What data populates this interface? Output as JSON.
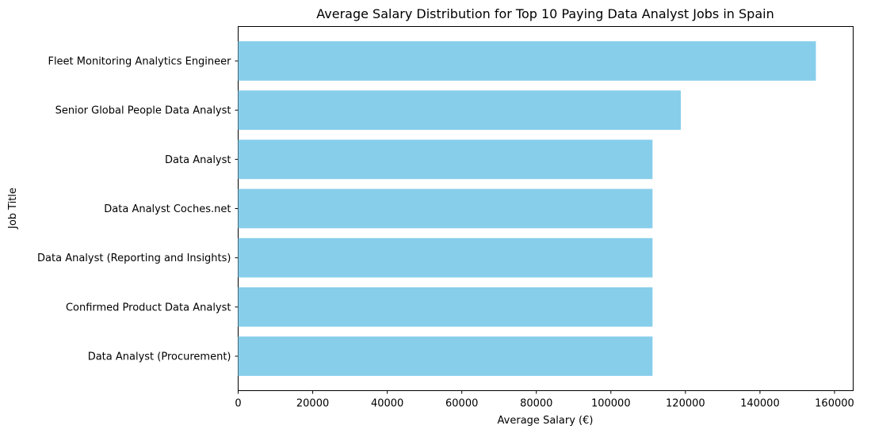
{
  "chart_data": {
    "type": "bar",
    "orientation": "horizontal",
    "title": "Average Salary Distribution for Top 10 Paying Data Analyst Jobs in Spain",
    "xlabel": "Average Salary (€)",
    "ylabel": "Job Title",
    "xlim": [
      0,
      165000
    ],
    "xticks": [
      0,
      20000,
      40000,
      60000,
      80000,
      100000,
      120000,
      140000,
      160000
    ],
    "categories": [
      "Fleet Monitoring Analytics Engineer",
      "Senior Global People Data Analyst",
      "Data Analyst",
      "Data Analyst Coches.net",
      "Data Analyst (Reporting and Insights)",
      "Confirmed Product Data Analyst",
      "Data Analyst (Procurement)"
    ],
    "values": [
      155000,
      118750,
      111175,
      111175,
      111175,
      111175,
      111175
    ],
    "bar_color": "#87ceeb",
    "grid": false,
    "legend": "none"
  }
}
